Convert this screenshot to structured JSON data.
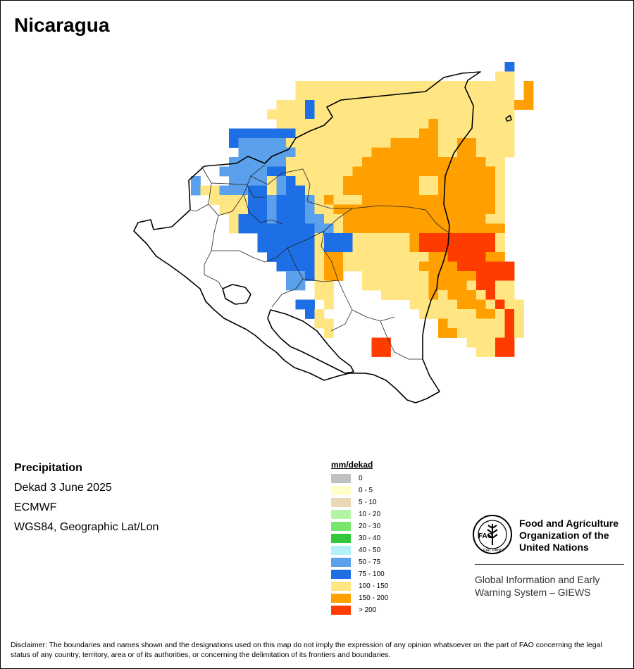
{
  "title": "Nicaragua",
  "info": {
    "variable": "Precipitation",
    "period": "Dekad 3 June 2025",
    "source": "ECMWF",
    "projection": "WGS84, Geographic Lat/Lon"
  },
  "legend": {
    "title": "mm/dekad",
    "classes": [
      {
        "label": "0",
        "color": "#c0c0c0"
      },
      {
        "label": "0 - 5",
        "color": "#ffffc8"
      },
      {
        "label": "5 - 10",
        "color": "#ead7b4"
      },
      {
        "label": "10 - 20",
        "color": "#b4f5a5"
      },
      {
        "label": "20 - 30",
        "color": "#78e66e"
      },
      {
        "label": "30 - 40",
        "color": "#32c83c"
      },
      {
        "label": "40 - 50",
        "color": "#b4f0fa"
      },
      {
        "label": "50 - 75",
        "color": "#5aa0eb"
      },
      {
        "label": "75 - 100",
        "color": "#1e6ee6"
      },
      {
        "label": "100 - 150",
        "color": "#ffe682"
      },
      {
        "label": "150 - 200",
        "color": "#ffa000"
      },
      {
        "label": "> 200",
        "color": "#ff3c00"
      }
    ]
  },
  "grid_map": [
    "..............................................",
    "..............................................",
    "..............................................",
    "..............................................",
    ".......................................B......",
    "......................................YY......",
    ".................YYYYYYYYYYYYYYYYYYYYYYY.O....",
    ".................YYYYYYYYYYYYYYYYYYYYYYY.O....",
    "...............YYYBYYYYYYYYYYYYYYYYYYYYYOO....",
    "..............YYYYBYYYYYYYYYYYYYYYYYYYYY......",
    "...............YYYYYYYYYYYYYYYYOYYYYYYYY......",
    "..........BBBBBBBYYYYYYYYYYYYYOOYYYYYYYY......",
    "..........BLLLLLYYYYYYYYYYYOOOOOYYOOYYYY......",
    "...........LLLLLLYYYYYYYYOOOOOOOYYOOYYYY......",
    "..........LLLLLLYYYYYYYYOOOOOOOOOOOOOYY.......",
    ".........LLLLLBBYYYYYYYOOOOOOOOOOOOOOOY.......",
    "......L...LLLLYLBYYYYYOOOOOOOOYYOOOOOOY.......",
    "......LYYLLLBBYLBBYYYYOOOOOOOOYYOOOOOOY.......",
    "........YYYYBBLBBBLYOYYYOOOOOOOOOOOOOOY.......",
    ".........YYYBBLBBBLYYOOOOOOOOOOOOOOOOOY.......",
    "..........YBBBLBBBLLYYOOOOOOOOOOOOOOOYY.......",
    "..........YBBBBBBBBLLYOOOOOOOOOOOOOOOOO.......",
    ".............BBBBBBYBBBYYYYYYORRRRRRRRY.......",
    ".............BBBBBBYBBBYYYYYYORRRRRRRRY.......",
    "..............BBBBBYOOYYYYYYYYYOORRRROO.......",
    "...............BBBBYOOYYYYYYYYOOOORRRRRR......",
    "................LLBYOO..YYYYYYYOOOOORRRR......",
    "................LL.YY...YYYYYYYOOOOYRRYY......",
    "...................YY.....YYYYYOYOOOYRYY......",
    ".................BB.Y........YYYYYOOOYRYY.....",
    "..................BY..........YYYYYYOOYRY.....",
    "...................YY...........OYYYYYYRY.....",
    "....................Y...........OOYYYYYRY.....",
    ".........................RR........YYYRR......",
    ".........................RR.........YYRR......",
    ".............................................."
  ],
  "grid_key": {
    "Y": "100 - 150",
    "O": "150 - 200",
    "R": "> 200",
    "B": "75 - 100",
    "L": "50 - 75"
  },
  "disclaimer": "Disclaimer: The boundaries and names shown and the designations used on this map do not imply the expression of any opinion whatsoever on the part of FAO concerning the legal status of any country, territory, area or of its authorities, or concerning the delimitation of its frontiers and boundaries.",
  "logo": {
    "org_line1": "Food and Agriculture",
    "org_line2": "Organization of the",
    "org_line3": "United Nations",
    "giews_line1": "Global Information and Early",
    "giews_line2": "Warning System – GIEWS",
    "emblem_top": "FAO",
    "emblem_motto": "FIAT PANIS"
  }
}
